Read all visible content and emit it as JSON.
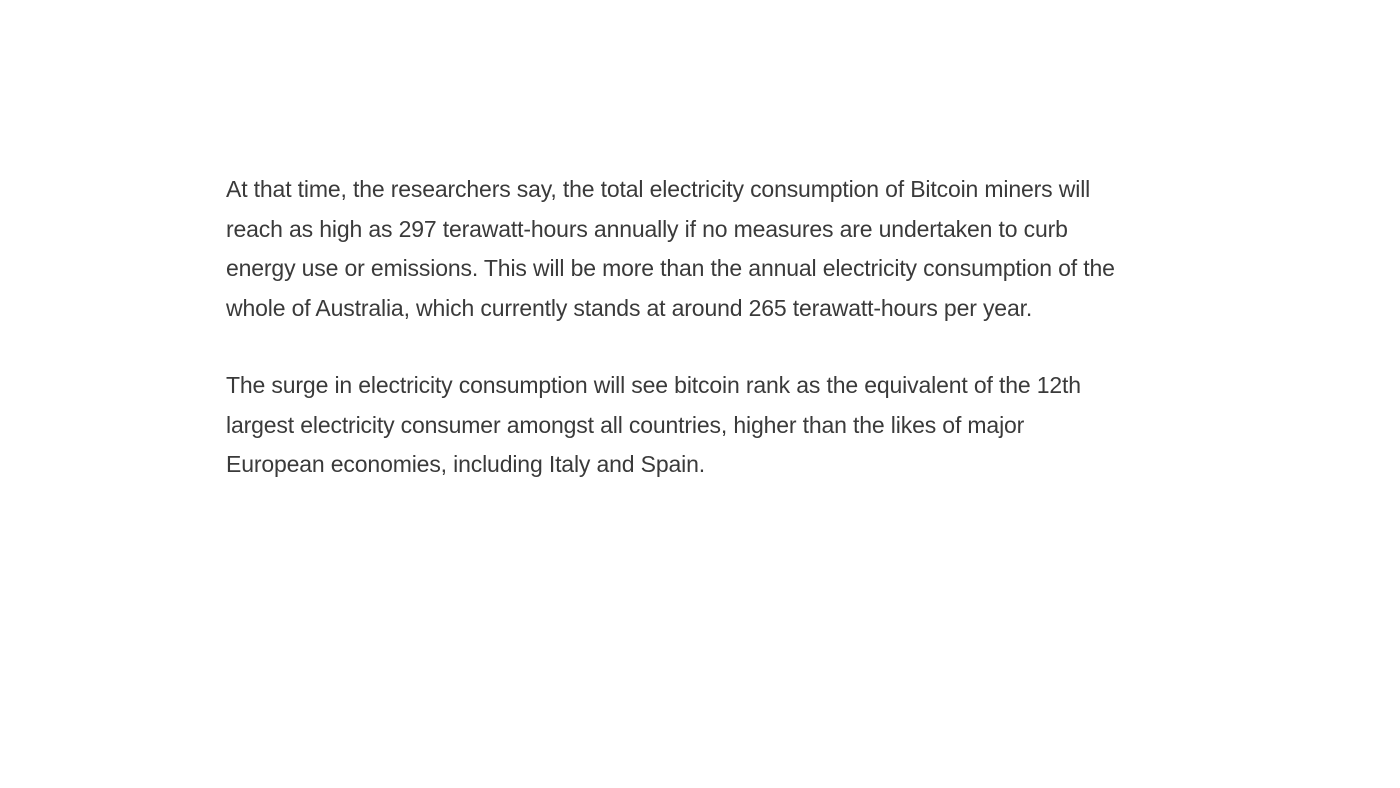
{
  "article": {
    "paragraphs": [
      "At that time, the researchers say, the total electricity consumption of Bitcoin miners will\nreach as high as 297 terawatt-hours annually if no measures are undertaken to curb\nenergy use or emissions. This will be more than the annual electricity consumption of the\nwhole of Australia, which currently stands at around 265 terawatt-hours per year.",
      "The surge in electricity consumption will see bitcoin rank as the equivalent of the 12th\nlargest electricity consumer amongst all countries, higher than the likes of major\nEuropean economies, including Italy and Spain."
    ]
  }
}
